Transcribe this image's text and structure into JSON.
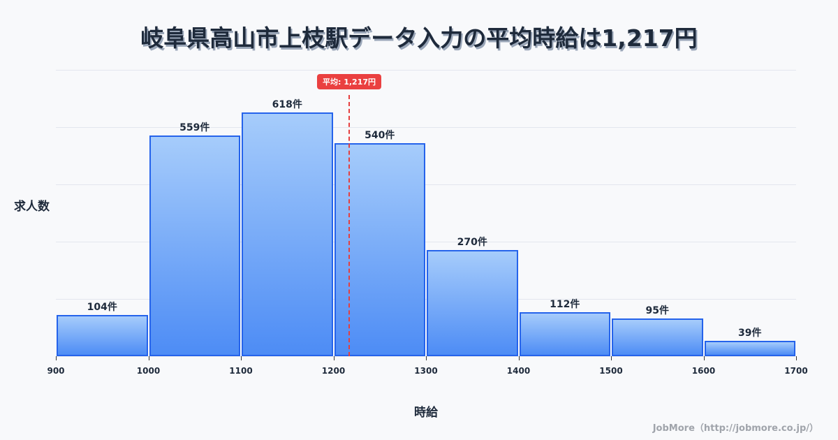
{
  "title": "岐阜県高山市上枝駅データ入力の平均時給は1,217円",
  "y_axis_label": "求人数",
  "x_axis_label": "時給",
  "credit": "JobMore（http://jobmore.co.jp/）",
  "average_badge": "平均: 1,217円",
  "colors": {
    "bar_border": "#2563eb",
    "bar_top": "#a6ccfb",
    "bar_bottom": "#4d8cf5",
    "average_line": "#e53e3e",
    "title": "#1e2a3b"
  },
  "chart_data": {
    "type": "bar",
    "title": "岐阜県高山市上枝駅データ入力の平均時給は1,217円",
    "xlabel": "時給",
    "ylabel": "求人数",
    "bins": [
      [
        900,
        1000
      ],
      [
        1000,
        1100
      ],
      [
        1100,
        1200
      ],
      [
        1200,
        1300
      ],
      [
        1300,
        1400
      ],
      [
        1400,
        1500
      ],
      [
        1500,
        1600
      ],
      [
        1600,
        1700
      ]
    ],
    "categories": [
      "900-1000",
      "1000-1100",
      "1100-1200",
      "1200-1300",
      "1300-1400",
      "1400-1500",
      "1500-1600",
      "1600-1700"
    ],
    "values": [
      104,
      559,
      618,
      540,
      270,
      112,
      95,
      39
    ],
    "value_labels": [
      "104件",
      "559件",
      "618件",
      "540件",
      "270件",
      "112件",
      "95件",
      "39件"
    ],
    "x_ticks": [
      "900",
      "1000",
      "1100",
      "1200",
      "1300",
      "1400",
      "1500",
      "1600",
      "1700"
    ],
    "xlim": [
      900,
      1700
    ],
    "ylim": [
      0,
      726
    ],
    "grid": true,
    "average": 1217,
    "average_label": "平均: 1,217円"
  }
}
